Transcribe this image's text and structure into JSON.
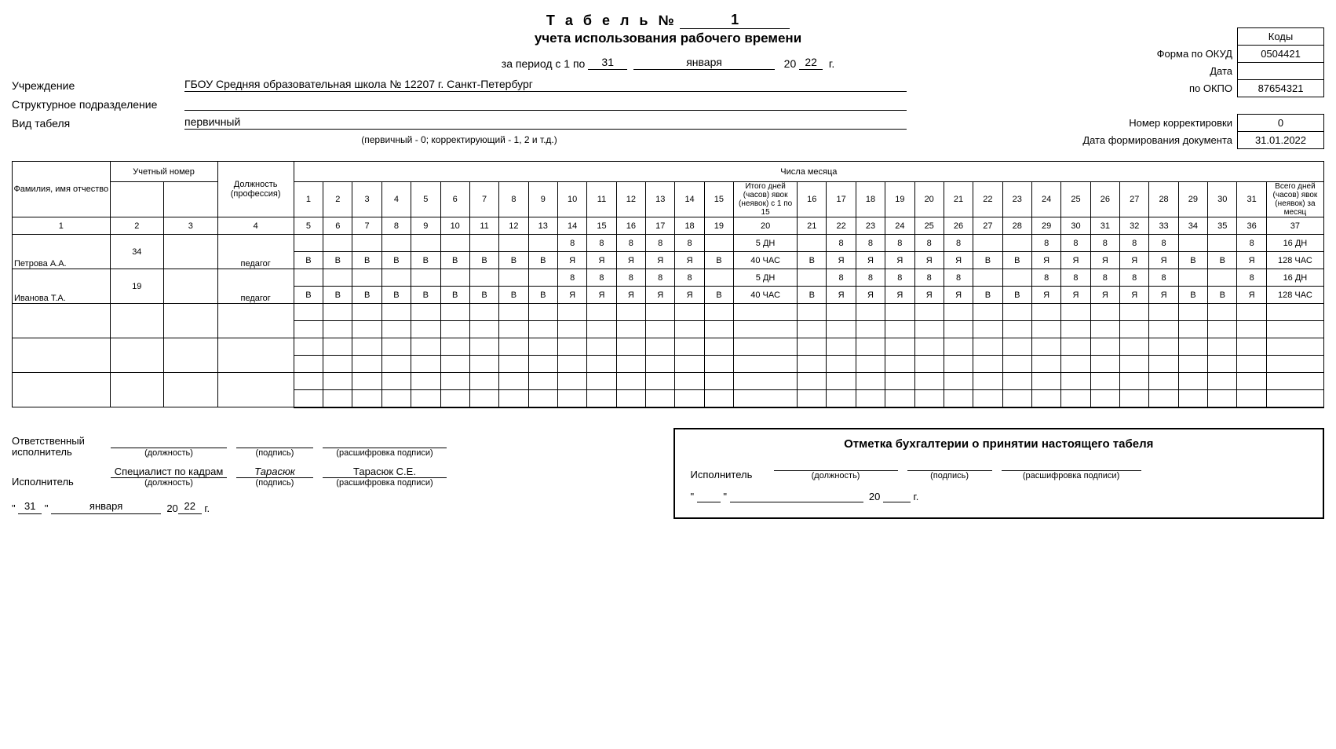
{
  "title": {
    "main": "Т а б е л ь  №",
    "number": "1",
    "sub": "учета использования рабочего времени"
  },
  "period": {
    "prefix": "за период с 1 по",
    "day": "31",
    "month": "января",
    "yr_prefix": "20",
    "yr": "22",
    "suffix": "г."
  },
  "codes": {
    "header": "Коды",
    "okud_lbl": "Форма по ОКУД",
    "okud": "0504421",
    "date_lbl": "Дата",
    "date": "",
    "okpo_lbl": "по ОКПО",
    "okpo": "87654321",
    "corr_lbl": "Номер корректировки",
    "corr": "0",
    "docdate_lbl": "Дата формирования документа",
    "docdate": "31.01.2022"
  },
  "info": {
    "org_lbl": "Учреждение",
    "org": "ГБОУ Средняя образовательная школа № 12207 г. Санкт-Петербург",
    "dept_lbl": "Структурное подразделение",
    "dept": "",
    "type_lbl": "Вид табеля",
    "type": "первичный",
    "type_hint": "(первичный - 0; корректирующий - 1, 2 и т.д.)"
  },
  "grid": {
    "hdr_fio": "Фамилия, имя отчество",
    "hdr_acct": "Учетный номер",
    "hdr_pos": "Должность (профессия)",
    "hdr_month": "Числа месяца",
    "hdr_mid": "Итого дней (часов) явок (неявок) с 1 по 15",
    "hdr_tot": "Всего дней (часов) явок (неявок) за месяц",
    "colnums": [
      "1",
      "2",
      "3",
      "4",
      "5",
      "6",
      "7",
      "8",
      "9",
      "10",
      "11",
      "12",
      "13",
      "14",
      "15",
      "16",
      "17",
      "18",
      "19",
      "20",
      "21",
      "22",
      "23",
      "24",
      "25",
      "26",
      "27",
      "28",
      "29",
      "30",
      "31",
      "32",
      "33",
      "34",
      "35",
      "36",
      "37"
    ],
    "days_a": [
      "1",
      "2",
      "3",
      "4",
      "5",
      "6",
      "7",
      "8",
      "9",
      "10",
      "11",
      "12",
      "13",
      "14",
      "15"
    ],
    "days_b": [
      "16",
      "17",
      "18",
      "19",
      "20",
      "21",
      "22",
      "23",
      "24",
      "25",
      "26",
      "27",
      "28",
      "29",
      "30",
      "31"
    ]
  },
  "rows": [
    {
      "fio": "Петрова А.А.",
      "num": "34",
      "num2": "",
      "pos": "педагог",
      "r1_days_a": [
        "",
        "",
        "",
        "",
        "",
        "",
        "",
        "",
        "",
        "8",
        "8",
        "8",
        "8",
        "8",
        ""
      ],
      "r1_mid": "5 ДН",
      "r1_days_b": [
        "",
        "8",
        "8",
        "8",
        "8",
        "8",
        "",
        "",
        "8",
        "8",
        "8",
        "8",
        "8",
        "",
        "",
        "8"
      ],
      "r1_tot": "16 ДН",
      "r2_days_a": [
        "В",
        "В",
        "В",
        "В",
        "В",
        "В",
        "В",
        "В",
        "В",
        "Я",
        "Я",
        "Я",
        "Я",
        "Я",
        "В"
      ],
      "r2_mid": "40 ЧАС",
      "r2_days_b": [
        "В",
        "Я",
        "Я",
        "Я",
        "Я",
        "Я",
        "В",
        "В",
        "Я",
        "Я",
        "Я",
        "Я",
        "Я",
        "В",
        "В",
        "Я"
      ],
      "r2_tot": "128 ЧАС"
    },
    {
      "fio": "Иванова Т.А.",
      "num": "19",
      "num2": "",
      "pos": "педагог",
      "r1_days_a": [
        "",
        "",
        "",
        "",
        "",
        "",
        "",
        "",
        "",
        "8",
        "8",
        "8",
        "8",
        "8",
        ""
      ],
      "r1_mid": "5 ДН",
      "r1_days_b": [
        "",
        "8",
        "8",
        "8",
        "8",
        "8",
        "",
        "",
        "8",
        "8",
        "8",
        "8",
        "8",
        "",
        "",
        "8"
      ],
      "r1_tot": "16 ДН",
      "r2_days_a": [
        "В",
        "В",
        "В",
        "В",
        "В",
        "В",
        "В",
        "В",
        "В",
        "Я",
        "Я",
        "Я",
        "Я",
        "Я",
        "В"
      ],
      "r2_mid": "40 ЧАС",
      "r2_days_b": [
        "В",
        "Я",
        "Я",
        "Я",
        "Я",
        "Я",
        "В",
        "В",
        "Я",
        "Я",
        "Я",
        "Я",
        "Я",
        "В",
        "В",
        "Я"
      ],
      "r2_tot": "128 ЧАС"
    }
  ],
  "footer": {
    "resp_lbl": "Ответственный исполнитель",
    "exec_lbl": "Исполнитель",
    "pos_hint": "(должность)",
    "sig_hint": "(подпись)",
    "name_hint": "(расшифровка подписи)",
    "exec_pos": "Специалист по кадрам",
    "exec_sig": "Тарасюк",
    "exec_name": "Тарасюк С.Е.",
    "date_d": "31",
    "date_m": "января",
    "date_yp": "20",
    "date_y": "22",
    "date_s": "г.",
    "mark_title": "Отметка бухгалтерии о принятии настоящего табеля",
    "mark_exec": "Исполнитель"
  }
}
